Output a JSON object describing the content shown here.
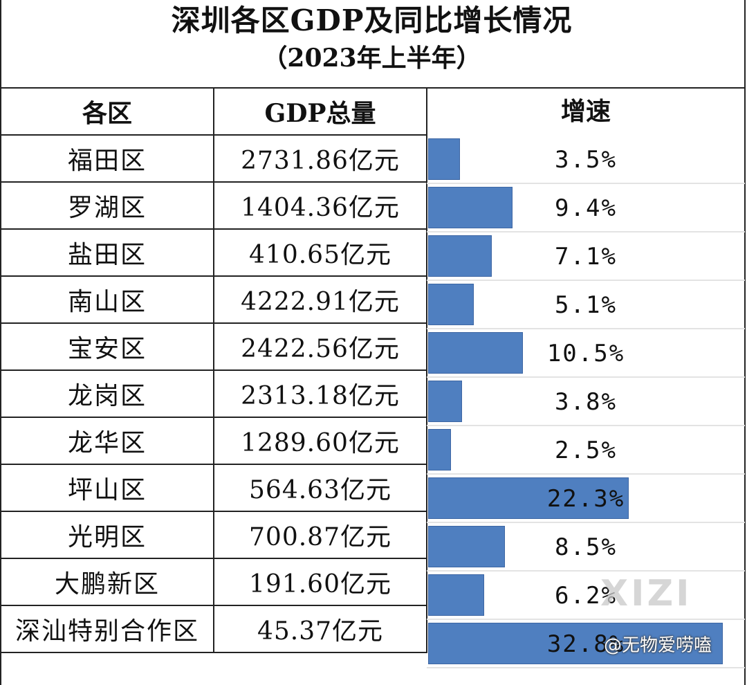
{
  "title": "深圳各区GDP及同比增长情况",
  "subtitle": "（2023年上半年）",
  "watermark": "XIZI",
  "credit": "@无物爱唠嗑",
  "chart_data": {
    "type": "table",
    "title": "深圳各区GDP及同比增长情况",
    "subtitle": "（2023年上半年）",
    "columns": [
      "各区",
      "GDP总量",
      "增速"
    ],
    "bar_color": "#4f7fc0",
    "xlim": [
      0,
      35
    ],
    "rows": [
      {
        "district": "福田区",
        "gdp": "2731.86亿元",
        "growth": 3.5,
        "growth_label": "3.5%"
      },
      {
        "district": "罗湖区",
        "gdp": "1404.36亿元",
        "growth": 9.4,
        "growth_label": "9.4%"
      },
      {
        "district": "盐田区",
        "gdp": "410.65亿元",
        "growth": 7.1,
        "growth_label": "7.1%"
      },
      {
        "district": "南山区",
        "gdp": "4222.91亿元",
        "growth": 5.1,
        "growth_label": "5.1%"
      },
      {
        "district": "宝安区",
        "gdp": "2422.56亿元",
        "growth": 10.5,
        "growth_label": "10.5%"
      },
      {
        "district": "龙岗区",
        "gdp": "2313.18亿元",
        "growth": 3.8,
        "growth_label": "3.8%"
      },
      {
        "district": "龙华区",
        "gdp": "1289.60亿元",
        "growth": 2.5,
        "growth_label": "2.5%"
      },
      {
        "district": "坪山区",
        "gdp": "564.63亿元",
        "growth": 22.3,
        "growth_label": "22.3%"
      },
      {
        "district": "光明区",
        "gdp": "700.87亿元",
        "growth": 8.5,
        "growth_label": "8.5%"
      },
      {
        "district": "大鹏新区",
        "gdp": "191.60亿元",
        "growth": 6.2,
        "growth_label": "6.2%"
      },
      {
        "district": "深汕特别合作区",
        "gdp": "45.37亿元",
        "growth": 32.8,
        "growth_label": "32.8%"
      }
    ]
  }
}
